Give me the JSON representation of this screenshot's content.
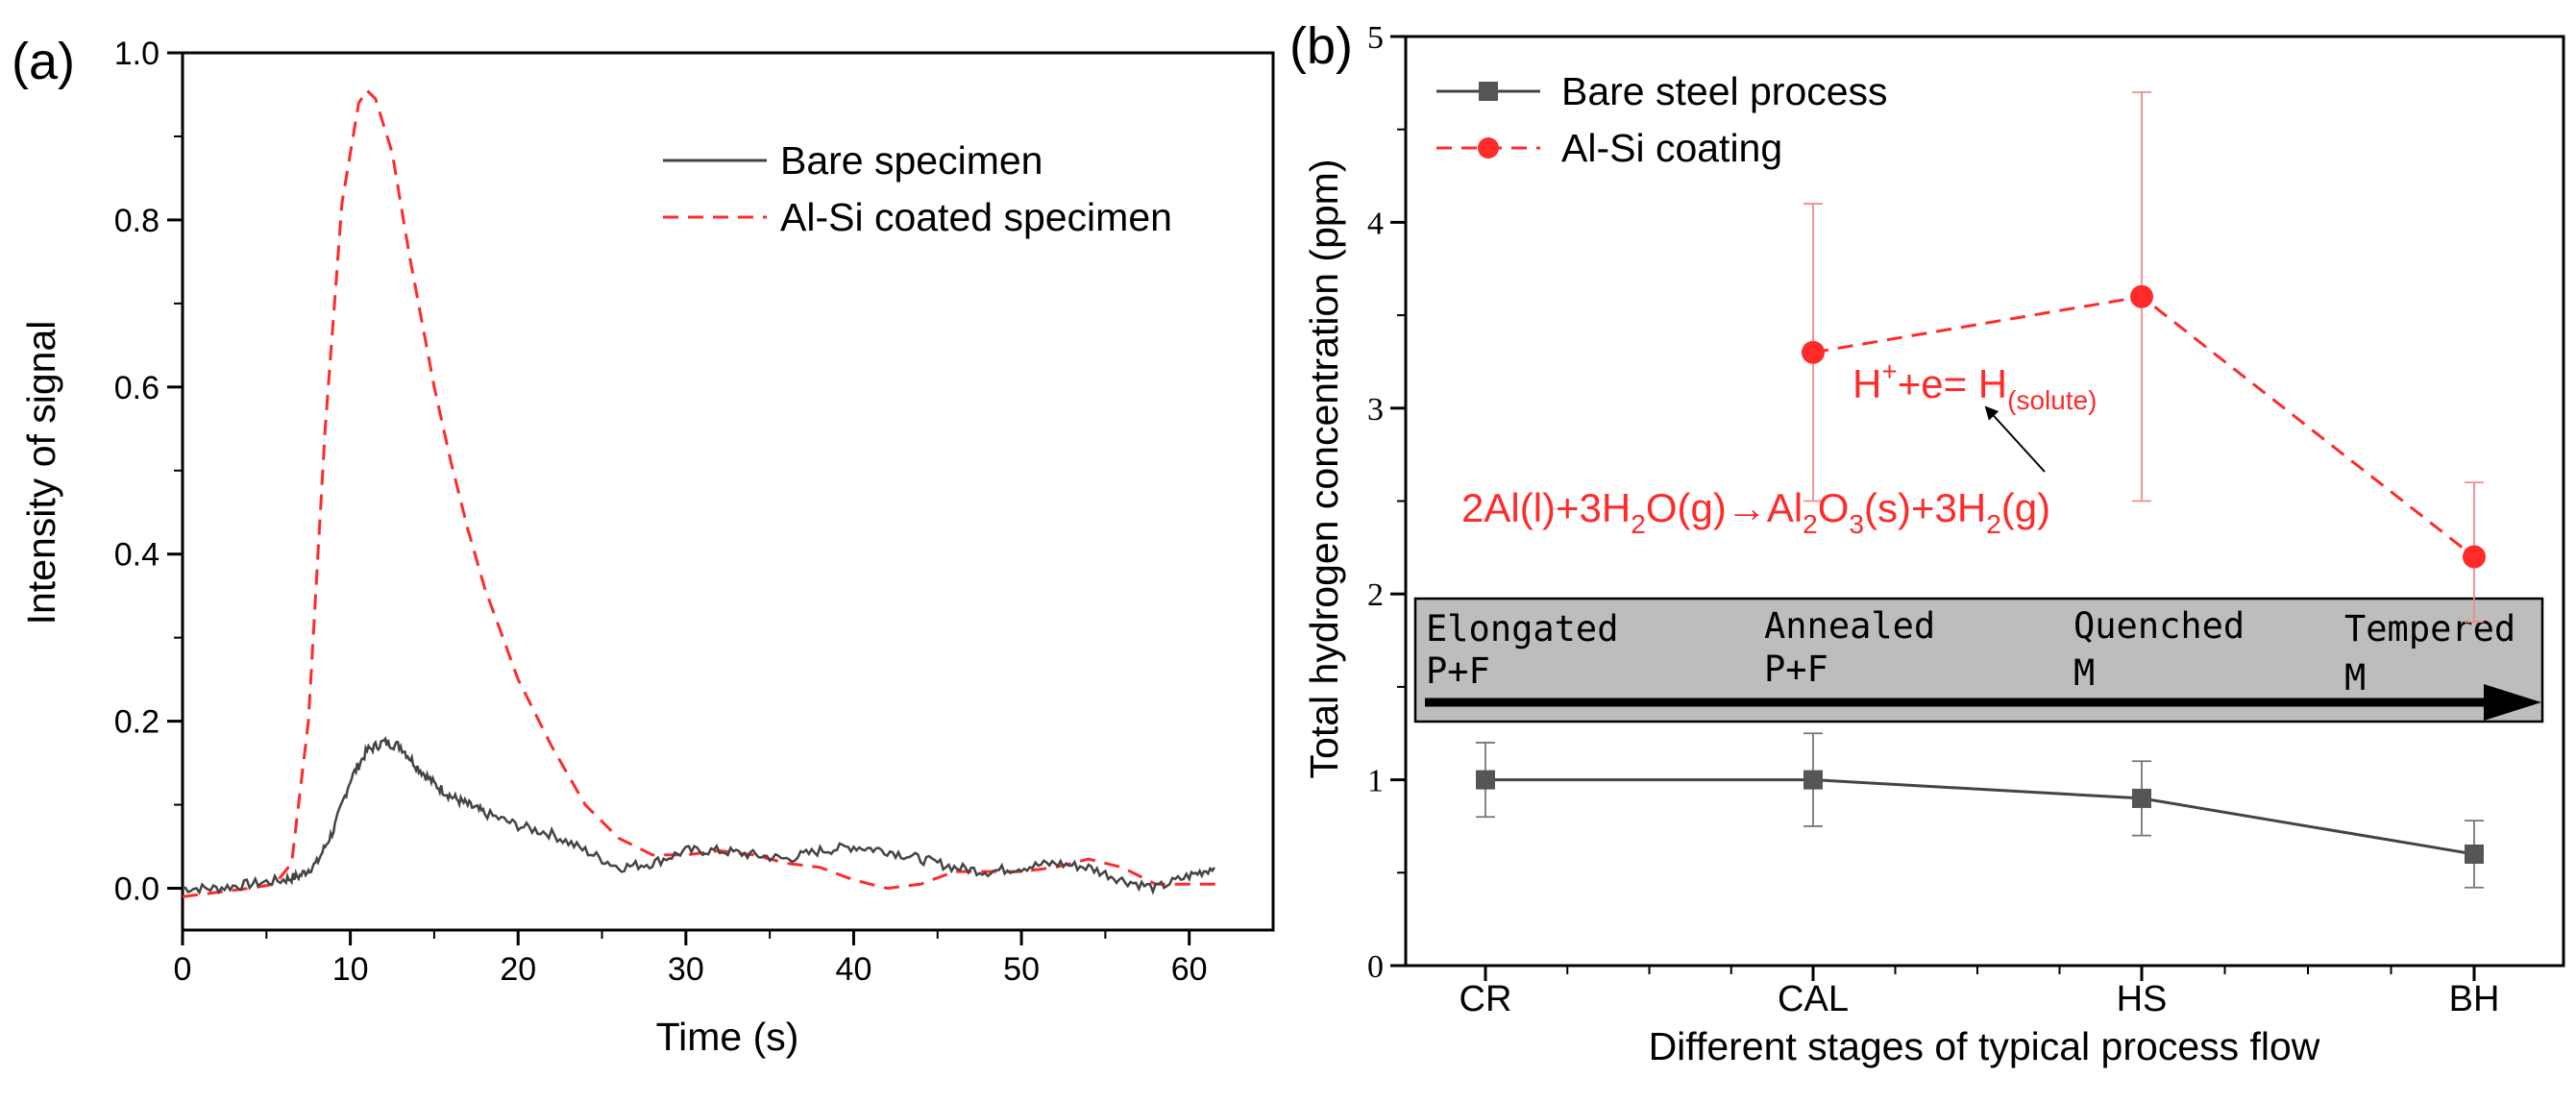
{
  "panel_a": {
    "label": "(a)",
    "xlabel": "Time (s)",
    "ylabel": "Intensity of signal",
    "legend": {
      "bare": "Bare specimen",
      "alsi": "Al-Si coated specimen"
    }
  },
  "panel_b": {
    "label": "(b)",
    "xlabel": "Different stages of typical process flow",
    "ylabel": "Total hydrogen concentration (ppm)",
    "legend": {
      "bare": "Bare steel process",
      "alsi": "Al-Si coating"
    },
    "eq1": {
      "a": "H",
      "b": "+",
      "c": "+e= H",
      "d": "(solute)"
    },
    "eq2": {
      "a": "2Al(l)+3H",
      "b": "2",
      "c": "O(g)→Al",
      "d": "2",
      "e": "O",
      "f": "3",
      "g": "(s)+3H",
      "h": "2",
      "i": "(g)"
    },
    "process": {
      "stage1": {
        "name": "Elongated",
        "phase": "P+F"
      },
      "stage2": {
        "name": "Annealed",
        "phase": "P+F"
      },
      "stage3": {
        "name": "Quenched",
        "phase": "M"
      },
      "stage4": {
        "name": "Tempered",
        "phase": "M"
      }
    }
  },
  "colors": {
    "bare": "#444444",
    "alsi": "#ff2a2a",
    "box": "#bdbdbd"
  },
  "chart_data": [
    {
      "type": "line",
      "xlabel": "Time (s)",
      "ylabel": "Intensity of signal",
      "xlim": [
        0,
        65
      ],
      "ylim": [
        -0.05,
        1.0
      ],
      "xticks": [
        0,
        10,
        20,
        30,
        40,
        50,
        60
      ],
      "yticks": [
        0.0,
        0.2,
        0.4,
        0.6,
        0.8,
        1.0
      ],
      "legend_position": "top-right",
      "series": [
        {
          "name": "Bare specimen",
          "style": "solid",
          "x": [
            0,
            2,
            4,
            6,
            7,
            8,
            9,
            10,
            11,
            12,
            13,
            14,
            15,
            16,
            17,
            18,
            20,
            22,
            24,
            26,
            28,
            30,
            32,
            34,
            36,
            38,
            40,
            42,
            44,
            46,
            48,
            50,
            52,
            54,
            56,
            58,
            60,
            61.5
          ],
          "y": [
            0.0,
            0.0,
            0.005,
            0.01,
            0.015,
            0.03,
            0.07,
            0.13,
            0.165,
            0.175,
            0.17,
            0.145,
            0.125,
            0.11,
            0.1,
            0.09,
            0.075,
            0.065,
            0.045,
            0.025,
            0.03,
            0.045,
            0.045,
            0.04,
            0.035,
            0.045,
            0.05,
            0.045,
            0.035,
            0.025,
            0.02,
            0.025,
            0.03,
            0.025,
            0.01,
            0.0,
            0.015,
            0.025
          ]
        },
        {
          "name": "Al-Si coated specimen",
          "style": "dashed",
          "x": [
            0,
            2,
            4,
            5.5,
            6.5,
            7.5,
            8.5,
            9.5,
            10.5,
            11,
            11.5,
            12.5,
            13.5,
            15,
            16,
            17,
            18,
            20,
            22,
            24,
            26,
            28,
            30,
            32,
            34,
            36,
            38,
            40,
            42,
            44,
            46,
            48,
            50,
            52,
            54,
            56,
            58,
            60,
            62
          ],
          "y": [
            -0.01,
            -0.005,
            0.0,
            0.005,
            0.03,
            0.2,
            0.55,
            0.82,
            0.94,
            0.955,
            0.945,
            0.88,
            0.76,
            0.6,
            0.51,
            0.43,
            0.36,
            0.25,
            0.17,
            0.1,
            0.06,
            0.04,
            0.04,
            0.045,
            0.04,
            0.03,
            0.025,
            0.01,
            0.0,
            0.005,
            0.02,
            0.02,
            0.02,
            0.025,
            0.035,
            0.025,
            0.005,
            0.005,
            0.005
          ]
        }
      ]
    },
    {
      "type": "line",
      "xlabel": "Different stages of typical process flow",
      "ylabel": "Total hydrogen concentration (ppm)",
      "categories": [
        "CR",
        "CAL",
        "HS",
        "BH"
      ],
      "ylim": [
        0,
        5
      ],
      "yticks": [
        0,
        1,
        2,
        3,
        4,
        5
      ],
      "legend_position": "top-left",
      "series": [
        {
          "name": "Bare steel process",
          "style": "solid",
          "marker": "square",
          "values": [
            1.0,
            1.0,
            0.9,
            0.6
          ],
          "err_low": [
            0.8,
            0.75,
            0.7,
            0.42
          ],
          "err_high": [
            1.2,
            1.25,
            1.1,
            0.78
          ]
        },
        {
          "name": "Al-Si coating",
          "style": "dashed",
          "marker": "circle",
          "values": [
            null,
            3.3,
            3.6,
            2.2
          ],
          "err_low": [
            null,
            2.5,
            2.5,
            1.85
          ],
          "err_high": [
            null,
            4.1,
            4.7,
            2.6
          ]
        }
      ]
    }
  ]
}
